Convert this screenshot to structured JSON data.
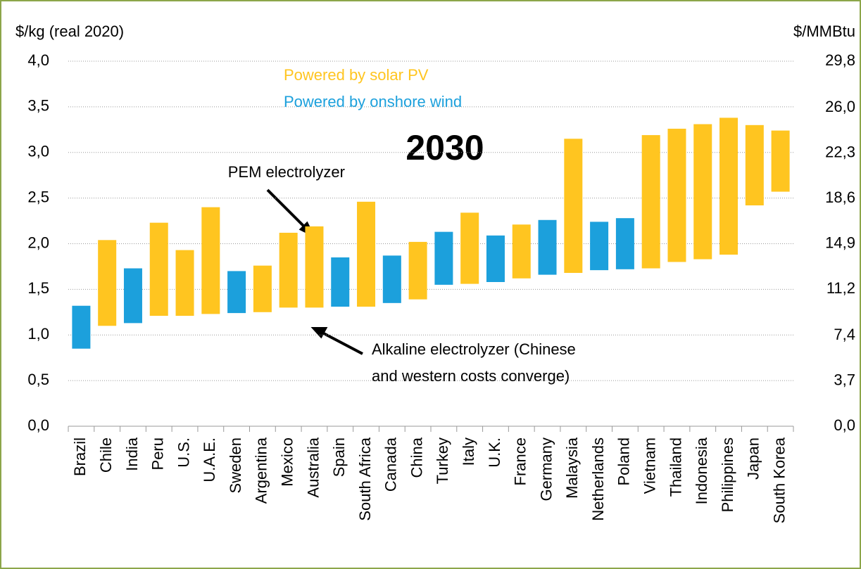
{
  "chart_data": {
    "type": "floating_bar",
    "title": "2030",
    "y_label": "$/kg (real 2020)",
    "y2_label": "$/MMBtu",
    "categories": [
      "Brazil",
      "Chile",
      "India",
      "Peru",
      "U.S.",
      "U.A.E.",
      "Sweden",
      "Argentina",
      "Mexico",
      "Australia",
      "Spain",
      "South Africa",
      "Canada",
      "China",
      "Turkey",
      "Italy",
      "U.K.",
      "France",
      "Germany",
      "Malaysia",
      "Netherlands",
      "Poland",
      "Vietnam",
      "Thailand",
      "Indonesia",
      "Philippines",
      "Japan",
      "South Korea"
    ],
    "series": [
      {
        "name": "Powered by solar PV",
        "color": "#FFC520",
        "low": [
          null,
          1.1,
          null,
          1.21,
          1.21,
          1.23,
          null,
          1.25,
          1.3,
          1.3,
          null,
          1.31,
          null,
          1.39,
          null,
          1.56,
          null,
          1.62,
          null,
          1.68,
          null,
          null,
          1.73,
          1.8,
          1.83,
          1.88,
          2.42,
          2.57
        ],
        "high": [
          null,
          2.04,
          null,
          2.23,
          1.93,
          2.4,
          null,
          1.76,
          2.12,
          2.19,
          null,
          2.46,
          null,
          2.02,
          null,
          2.34,
          null,
          2.21,
          null,
          3.15,
          null,
          null,
          3.19,
          3.26,
          3.31,
          3.38,
          3.3,
          3.24
        ]
      },
      {
        "name": "Powered by onshore wind",
        "color": "#1CA0DC",
        "low": [
          0.85,
          null,
          1.13,
          null,
          null,
          null,
          1.24,
          null,
          null,
          null,
          1.31,
          null,
          1.35,
          null,
          1.55,
          null,
          1.58,
          null,
          1.66,
          null,
          1.71,
          1.72,
          null,
          null,
          null,
          null,
          null,
          null
        ],
        "high": [
          1.32,
          null,
          1.73,
          null,
          null,
          null,
          1.7,
          null,
          null,
          null,
          1.85,
          null,
          1.87,
          null,
          2.13,
          null,
          2.09,
          null,
          2.26,
          null,
          2.24,
          2.28,
          null,
          null,
          null,
          null,
          null,
          null
        ]
      }
    ],
    "ylim": [
      0,
      4
    ],
    "yticks": [
      {
        "value": 0,
        "label": "0,0"
      },
      {
        "value": 0.5,
        "label": "0,5"
      },
      {
        "value": 1,
        "label": "1,0"
      },
      {
        "value": 1.5,
        "label": "1,5"
      },
      {
        "value": 2,
        "label": "2,0"
      },
      {
        "value": 2.5,
        "label": "2,5"
      },
      {
        "value": 3,
        "label": "3,0"
      },
      {
        "value": 3.5,
        "label": "3,5"
      },
      {
        "value": 4,
        "label": "4,0"
      }
    ],
    "y2lim": [
      0,
      29.8
    ],
    "y2ticks": [
      {
        "value": 0,
        "label": "0,0"
      },
      {
        "value": 3.7,
        "label": "3,7"
      },
      {
        "value": 7.4,
        "label": "7,4"
      },
      {
        "value": 11.2,
        "label": "11,2"
      },
      {
        "value": 14.9,
        "label": "14,9"
      },
      {
        "value": 18.6,
        "label": "18,6"
      },
      {
        "value": 22.3,
        "label": "22,3"
      },
      {
        "value": 26.0,
        "label": "26,0"
      },
      {
        "value": 29.8,
        "label": "29,8"
      }
    ],
    "grid": true,
    "annotations": [
      {
        "lines": [
          "PEM electrolyzer"
        ]
      },
      {
        "lines": [
          "Alkaline electrolyzer (Chinese",
          "and western costs converge)"
        ]
      }
    ]
  }
}
